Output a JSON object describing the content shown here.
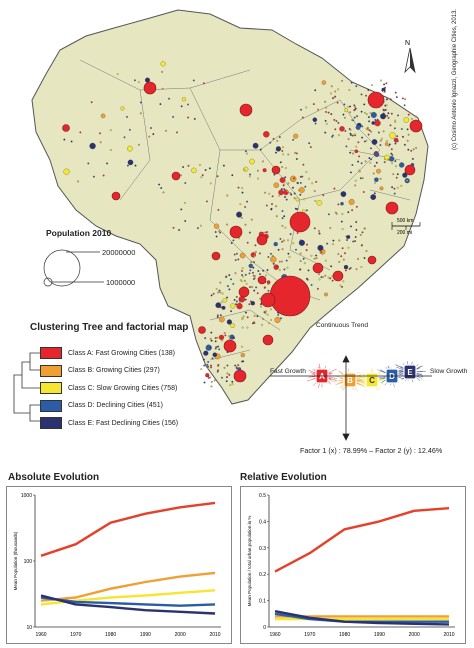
{
  "map": {
    "north_label": "N",
    "scale_km": "500 km",
    "scale_mi": "200 mi",
    "credit": "(c) Cosimo Antonio Ignazzi, Geographie Cities, 2013.",
    "population_title": "Population 2010",
    "population_large": "20000000",
    "population_small": "1000000"
  },
  "clustering": {
    "title": "Clustering Tree and factorial map",
    "classes": [
      {
        "label": "Class A: Fast Growing Cities (138)",
        "color": "#e5262c",
        "letter": "A"
      },
      {
        "label": "Class B: Growing Cities (297)",
        "color": "#f0a032",
        "letter": "B"
      },
      {
        "label": "Class C: Slow Growing Cities (758)",
        "color": "#f5e631",
        "letter": "C"
      },
      {
        "label": "Class D: Declining Cities (451)",
        "color": "#2a5ca8",
        "letter": "D"
      },
      {
        "label": "Class E: Fast Declining Cities (156)",
        "color": "#2a3270",
        "letter": "E"
      }
    ],
    "factor_labels": {
      "continuous": "Continuous Trend",
      "fast": "Fast Growth",
      "slow": "Slow Growth",
      "factor": "Factor 1 (x) : 78.99% – Factor 2 (y) : 12.46%"
    }
  },
  "chart_data": [
    {
      "type": "line",
      "title": "Absolute Evolution",
      "ylabel": "Mean Population (thousands)",
      "x": [
        1960,
        1970,
        1980,
        1990,
        2000,
        2010
      ],
      "yscale": "log",
      "ylim": [
        10,
        1000
      ],
      "yticks": [
        10,
        100,
        1000
      ],
      "series": [
        {
          "values": [
            120,
            180,
            380,
            520,
            650,
            760
          ],
          "color": "#e5402a"
        },
        {
          "values": [
            25,
            28,
            38,
            48,
            58,
            66
          ],
          "color": "#f0a032"
        },
        {
          "values": [
            22,
            25,
            28,
            30,
            33,
            36
          ],
          "color": "#f5e631"
        },
        {
          "values": [
            28,
            24,
            23,
            22,
            21,
            22
          ],
          "color": "#2a5ca8"
        },
        {
          "values": [
            30,
            22,
            20,
            18,
            17,
            16
          ],
          "color": "#2a3270"
        }
      ]
    },
    {
      "type": "line",
      "title": "Relative Evolution",
      "ylabel": "Mean Population / total urban population in %",
      "x": [
        1960,
        1970,
        1980,
        1990,
        2000,
        2010
      ],
      "ylim": [
        0,
        0.5
      ],
      "yticks": [
        0,
        0.1,
        0.2,
        0.3,
        0.4,
        0.5
      ],
      "series": [
        {
          "values": [
            0.21,
            0.28,
            0.37,
            0.4,
            0.44,
            0.45
          ],
          "color": "#e5402a"
        },
        {
          "values": [
            0.04,
            0.04,
            0.04,
            0.04,
            0.04,
            0.04
          ],
          "color": "#f0a032"
        },
        {
          "values": [
            0.03,
            0.03,
            0.03,
            0.03,
            0.03,
            0.03
          ],
          "color": "#f5e631"
        },
        {
          "values": [
            0.05,
            0.03,
            0.02,
            0.02,
            0.02,
            0.02
          ],
          "color": "#2a5ca8"
        },
        {
          "values": [
            0.06,
            0.035,
            0.02,
            0.015,
            0.012,
            0.01
          ],
          "color": "#2a3270"
        }
      ]
    }
  ]
}
